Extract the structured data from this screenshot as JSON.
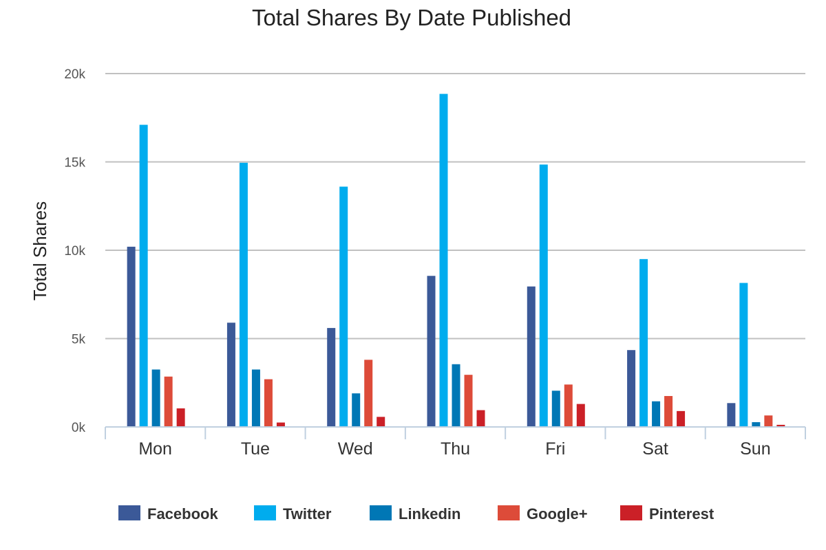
{
  "chart_data": {
    "type": "bar",
    "title": "Total Shares By Date Published",
    "ylabel": "Total Shares",
    "xlabel": "",
    "categories": [
      "Mon",
      "Tue",
      "Wed",
      "Thu",
      "Fri",
      "Sat",
      "Sun"
    ],
    "ylim": [
      0,
      20000
    ],
    "yticks": [
      0,
      5000,
      10000,
      15000,
      20000
    ],
    "ytick_labels": [
      "0k",
      "5k",
      "10k",
      "15k",
      "20k"
    ],
    "grid": true,
    "legend_position": "bottom",
    "series": [
      {
        "name": "Facebook",
        "color": "#3b5998",
        "values": [
          10200,
          5900,
          5600,
          8550,
          7950,
          4350,
          1350
        ]
      },
      {
        "name": "Twitter",
        "color": "#00acee",
        "values": [
          17100,
          14950,
          13600,
          18850,
          14850,
          9500,
          8150
        ]
      },
      {
        "name": "Linkedin",
        "color": "#0077b5",
        "values": [
          3250,
          3250,
          1900,
          3550,
          2050,
          1450,
          270
        ]
      },
      {
        "name": "Google+",
        "color": "#dd4b39",
        "values": [
          2850,
          2700,
          3800,
          2950,
          2400,
          1750,
          650
        ]
      },
      {
        "name": "Pinterest",
        "color": "#cb2027",
        "values": [
          1050,
          250,
          570,
          950,
          1300,
          900,
          120
        ]
      }
    ]
  }
}
